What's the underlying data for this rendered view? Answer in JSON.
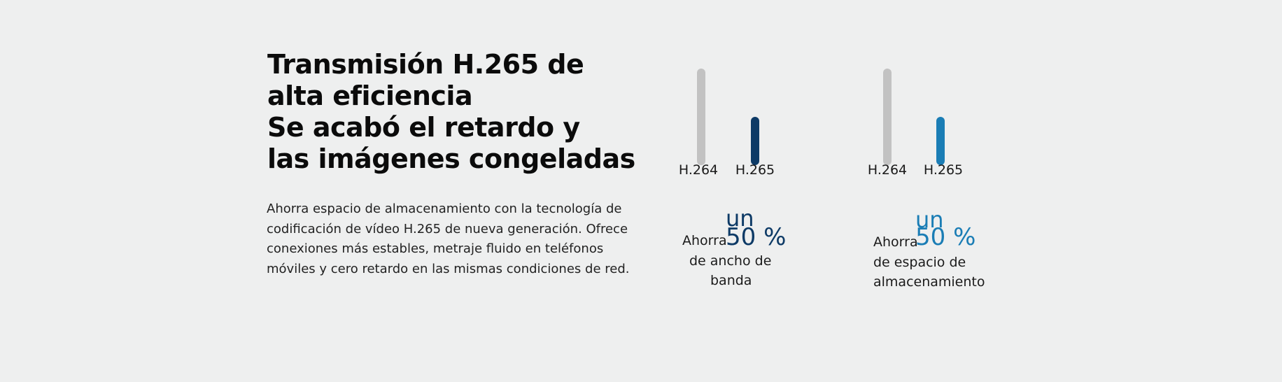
{
  "heading": {
    "lines": [
      "Transmisión H.265 de",
      "alta eficiencia",
      "Se acabó el retardo y",
      "las imágenes congeladas"
    ]
  },
  "description": "Ahorra espacio de almacenamiento con la tecnología de codificación de vídeo H.265 de nueva generación. Ofrece conexiones más estables, metraje fluido en teléfonos móviles y cero retardo en las mismas condiciones de red.",
  "colors": {
    "background": "#eeefef",
    "bar_baseline": "#c2c2c2",
    "bandwidth_accent": "#0d3a66",
    "storage_accent": "#1a7db5"
  },
  "stats": [
    {
      "id": "bandwidth",
      "bars": [
        {
          "label": "H.264",
          "relative_value": 1.0
        },
        {
          "label": "H.265",
          "relative_value": 0.5
        }
      ],
      "percent_prefix": "un",
      "percent_value": "50 %",
      "caption_lines": [
        "Ahorra",
        "de ancho de",
        "banda"
      ]
    },
    {
      "id": "storage",
      "bars": [
        {
          "label": "H.264",
          "relative_value": 1.0
        },
        {
          "label": "H.265",
          "relative_value": 0.5
        }
      ],
      "percent_prefix": "un",
      "percent_value": "50 %",
      "caption_lines": [
        "Ahorra",
        "de espacio de",
        "almacenamiento"
      ]
    }
  ]
}
